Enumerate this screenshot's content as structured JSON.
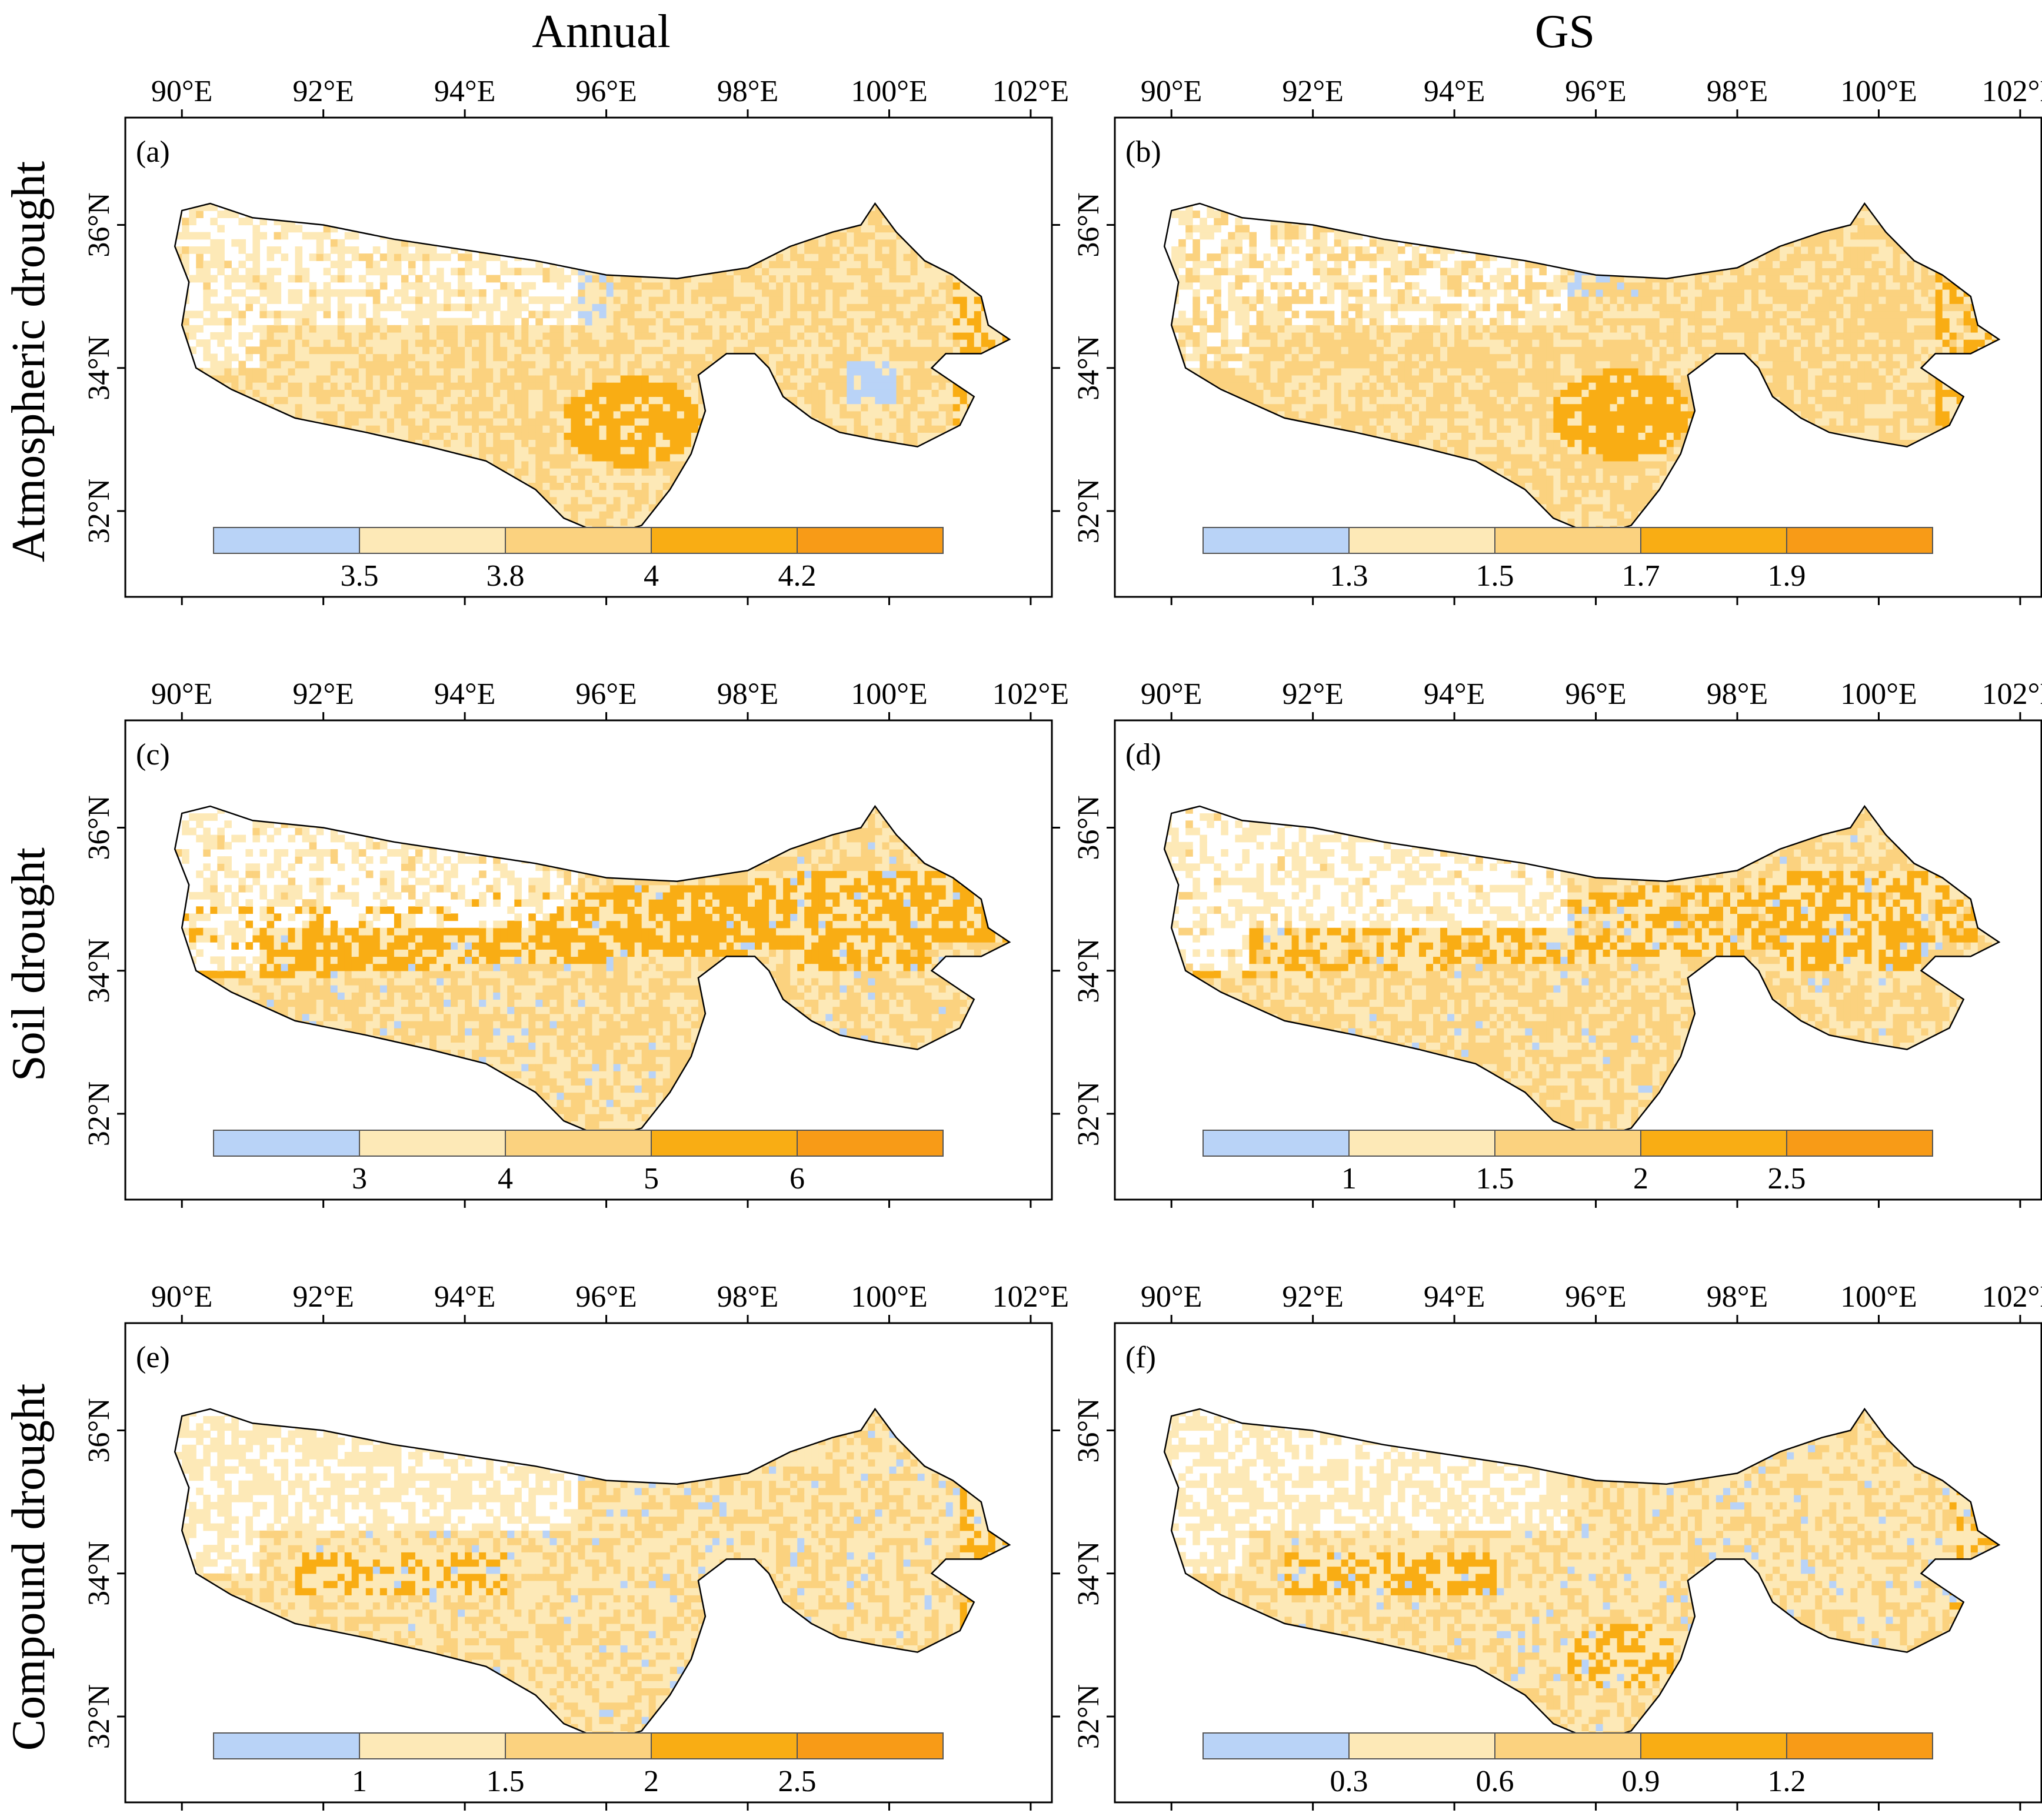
{
  "figure": {
    "column_titles": [
      "Annual",
      "GS"
    ],
    "row_titles": [
      "Atmospheric drought",
      "Soil drought",
      "Compound drought"
    ]
  },
  "axes": {
    "lon_labels": [
      "90°E",
      "92°E",
      "94°E",
      "96°E",
      "98°E",
      "100°E",
      "102°E"
    ],
    "lon_values": [
      90,
      92,
      94,
      96,
      98,
      100,
      102
    ],
    "lat_labels": [
      "36°N",
      "34°N",
      "32°N"
    ],
    "lat_values": [
      36,
      34,
      32
    ],
    "lon_range": [
      89.2,
      102.3
    ],
    "lat_range": [
      30.8,
      37.5
    ]
  },
  "palette": {
    "colors": [
      "#b9d3f7",
      "#fde9b7",
      "#fbd27f",
      "#f9ad14",
      "#f89b17"
    ],
    "outline": "#000000"
  },
  "panels": [
    {
      "label": "(a)",
      "breaks": [
        "3.5",
        "3.8",
        "4",
        "4.2"
      ]
    },
    {
      "label": "(b)",
      "breaks": [
        "1.3",
        "1.5",
        "1.7",
        "1.9"
      ]
    },
    {
      "label": "(c)",
      "breaks": [
        "3",
        "4",
        "5",
        "6"
      ]
    },
    {
      "label": "(d)",
      "breaks": [
        "1",
        "1.5",
        "2",
        "2.5"
      ]
    },
    {
      "label": "(e)",
      "breaks": [
        "1",
        "1.5",
        "2",
        "2.5"
      ]
    },
    {
      "label": "(f)",
      "breaks": [
        "0.3",
        "0.6",
        "0.9",
        "1.2"
      ]
    }
  ],
  "region_outline_lonlat": [
    [
      90.0,
      36.2
    ],
    [
      90.4,
      36.3
    ],
    [
      91.0,
      36.1
    ],
    [
      92.0,
      36.0
    ],
    [
      93.0,
      35.8
    ],
    [
      94.0,
      35.65
    ],
    [
      95.0,
      35.5
    ],
    [
      96.0,
      35.3
    ],
    [
      97.0,
      35.25
    ],
    [
      98.0,
      35.4
    ],
    [
      98.6,
      35.7
    ],
    [
      99.2,
      35.9
    ],
    [
      99.6,
      36.0
    ],
    [
      99.8,
      36.3
    ],
    [
      100.1,
      35.9
    ],
    [
      100.5,
      35.5
    ],
    [
      100.9,
      35.3
    ],
    [
      101.3,
      35.0
    ],
    [
      101.4,
      34.6
    ],
    [
      101.7,
      34.4
    ],
    [
      101.3,
      34.2
    ],
    [
      100.8,
      34.2
    ],
    [
      100.6,
      34.0
    ],
    [
      100.9,
      33.8
    ],
    [
      101.2,
      33.6
    ],
    [
      101.0,
      33.2
    ],
    [
      100.4,
      32.9
    ],
    [
      99.8,
      33.0
    ],
    [
      99.3,
      33.1
    ],
    [
      98.9,
      33.3
    ],
    [
      98.5,
      33.6
    ],
    [
      98.3,
      34.0
    ],
    [
      98.1,
      34.2
    ],
    [
      97.7,
      34.2
    ],
    [
      97.3,
      33.9
    ],
    [
      97.4,
      33.4
    ],
    [
      97.2,
      32.8
    ],
    [
      96.9,
      32.3
    ],
    [
      96.5,
      31.8
    ],
    [
      96.0,
      31.65
    ],
    [
      95.4,
      31.9
    ],
    [
      95.0,
      32.3
    ],
    [
      94.3,
      32.7
    ],
    [
      93.5,
      32.9
    ],
    [
      92.6,
      33.1
    ],
    [
      91.6,
      33.3
    ],
    [
      90.7,
      33.7
    ],
    [
      90.2,
      34.0
    ],
    [
      90.0,
      34.6
    ],
    [
      90.1,
      35.2
    ],
    [
      89.9,
      35.7
    ],
    [
      90.0,
      36.2
    ]
  ]
}
